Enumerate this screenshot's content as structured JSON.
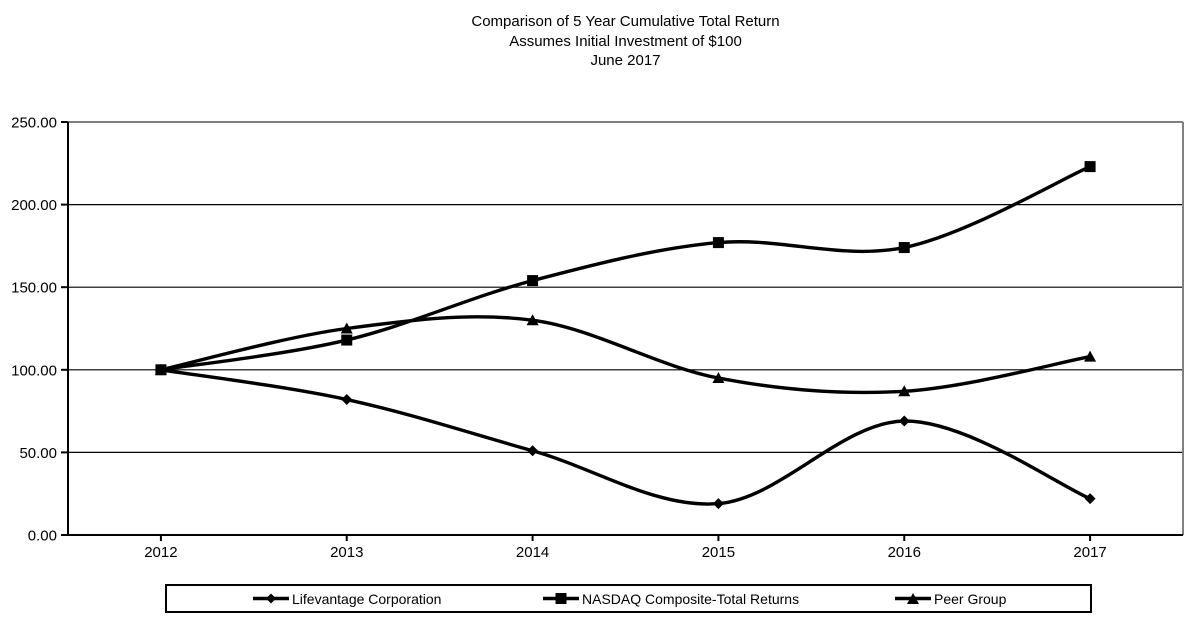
{
  "chart_data": {
    "type": "line",
    "title": "Comparison of 5 Year Cumulative Total Return",
    "subtitle": "Assumes Initial Investment of $100",
    "period_label": "June 2017",
    "categories": [
      "2012",
      "2013",
      "2014",
      "2015",
      "2016",
      "2017"
    ],
    "series": [
      {
        "name": "Lifevantage Corporation",
        "marker": "diamond",
        "values": [
          100,
          82,
          51,
          19,
          69,
          22
        ]
      },
      {
        "name": "NASDAQ Composite-Total Returns",
        "marker": "square",
        "values": [
          100,
          118,
          154,
          177,
          174,
          223
        ]
      },
      {
        "name": "Peer Group",
        "marker": "triangle",
        "values": [
          100,
          125,
          130,
          95,
          87,
          108
        ]
      }
    ],
    "ylim": [
      0,
      250
    ],
    "ytick_step": 50,
    "ytick_labels": [
      "0.00",
      "50.00",
      "100.00",
      "150.00",
      "200.00",
      "250.00"
    ],
    "grid": true,
    "smoothed": true,
    "legend_position": "bottom",
    "colors": {
      "line": "#000000",
      "gridline": "#000000",
      "axis": "#000000",
      "plot_border": "#808080",
      "text": "#000000",
      "background": "#ffffff"
    }
  }
}
